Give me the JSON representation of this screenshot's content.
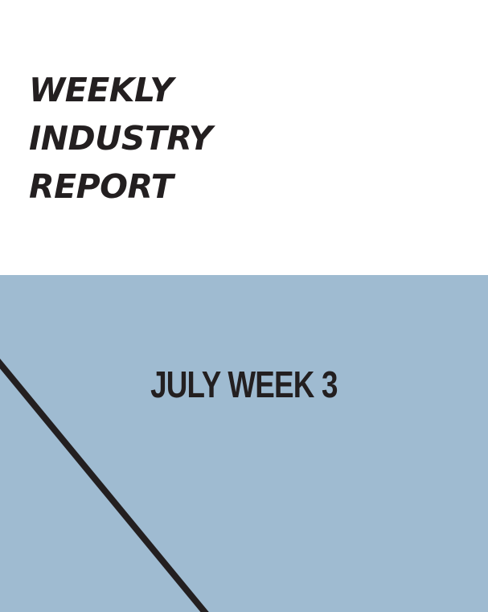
{
  "cover": {
    "title_lines": [
      "WEEKLY",
      "INDUSTRY",
      "REPORT"
    ],
    "subtitle": "JULY WEEK 3"
  },
  "colors": {
    "background_top": "#ffffff",
    "background_bottom": "#9fbbd1",
    "text": "#231f20",
    "diagonal_line": "#231f20"
  }
}
